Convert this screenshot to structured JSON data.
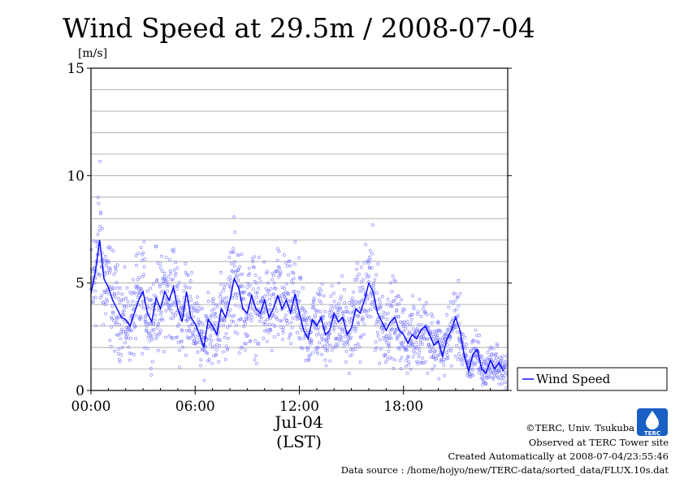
{
  "chart_data": {
    "type": "scatter",
    "title": "Wind Speed at 29.5m / 2008-07-04",
    "ylabel": "[m/s]",
    "xlabel_date": "Jul-04",
    "xlabel_tz": "(LST)",
    "ylim": [
      0,
      15
    ],
    "xlim_hours": [
      0,
      24
    ],
    "yticks": [
      {
        "value": 0,
        "label": "0"
      },
      {
        "value": 5,
        "label": "5"
      },
      {
        "value": 10,
        "label": "10"
      },
      {
        "value": 15,
        "label": "15"
      }
    ],
    "xticks": [
      {
        "hour": 0,
        "label": "00:00"
      },
      {
        "hour": 6,
        "label": "06:00"
      },
      {
        "hour": 12,
        "label": "12:00"
      },
      {
        "hour": 18,
        "label": "18:00"
      }
    ],
    "grid": true,
    "legend_position": "right",
    "series": [
      {
        "name": "Wind Speed",
        "color": "#0000ff",
        "point_color": "#7777ff",
        "x_hours": [
          0.0,
          0.25,
          0.5,
          0.75,
          1.0,
          1.25,
          1.5,
          1.75,
          2.0,
          2.25,
          2.5,
          2.75,
          3.0,
          3.25,
          3.5,
          3.75,
          4.0,
          4.25,
          4.5,
          4.75,
          5.0,
          5.25,
          5.5,
          5.75,
          6.0,
          6.25,
          6.5,
          6.75,
          7.0,
          7.25,
          7.5,
          7.75,
          8.0,
          8.25,
          8.5,
          8.75,
          9.0,
          9.25,
          9.5,
          9.75,
          10.0,
          10.25,
          10.5,
          10.75,
          11.0,
          11.25,
          11.5,
          11.75,
          12.0,
          12.25,
          12.5,
          12.75,
          13.0,
          13.25,
          13.5,
          13.75,
          14.0,
          14.25,
          14.5,
          14.75,
          15.0,
          15.25,
          15.5,
          15.75,
          16.0,
          16.25,
          16.5,
          16.75,
          17.0,
          17.25,
          17.5,
          17.75,
          18.0,
          18.25,
          18.5,
          18.75,
          19.0,
          19.25,
          19.5,
          19.75,
          20.0,
          20.25,
          20.5,
          20.75,
          21.0,
          21.25,
          21.5,
          21.75,
          22.0,
          22.25,
          22.5,
          22.75,
          23.0,
          23.25,
          23.5,
          23.75
        ],
        "values": [
          4.5,
          5.5,
          7.0,
          5.2,
          4.8,
          4.2,
          3.8,
          3.4,
          3.3,
          3.0,
          3.6,
          4.2,
          4.6,
          3.6,
          3.2,
          4.3,
          3.8,
          4.6,
          4.2,
          4.8,
          3.8,
          3.2,
          4.6,
          3.4,
          3.1,
          2.6,
          2.0,
          3.3,
          3.0,
          2.6,
          3.8,
          3.4,
          4.2,
          5.2,
          4.8,
          3.8,
          3.6,
          4.4,
          3.8,
          3.6,
          4.2,
          3.4,
          3.8,
          4.4,
          3.8,
          4.2,
          3.6,
          4.5,
          3.6,
          2.8,
          2.4,
          3.3,
          3.0,
          3.4,
          2.6,
          2.8,
          3.6,
          3.2,
          3.4,
          2.6,
          2.9,
          3.8,
          3.6,
          4.2,
          5.0,
          4.6,
          3.6,
          3.2,
          2.8,
          3.2,
          3.4,
          2.8,
          2.6,
          2.2,
          2.6,
          2.4,
          2.8,
          3.0,
          2.6,
          2.1,
          2.3,
          1.6,
          2.4,
          2.8,
          3.4,
          2.8,
          1.6,
          0.9,
          1.7,
          1.9,
          1.0,
          0.8,
          1.4,
          1.0,
          1.3,
          0.9
        ]
      }
    ]
  },
  "footer": {
    "copyright": "©TERC, Univ. Tsukuba",
    "observed": "Observed at TERC Tower site",
    "created": "Created Automatically at 2008-07-04/23:55:46",
    "source": "Data source : /home/hojyo/new/TERC-data/sorted_data/FLUX.10s.dat"
  },
  "logo_text": "TERC"
}
